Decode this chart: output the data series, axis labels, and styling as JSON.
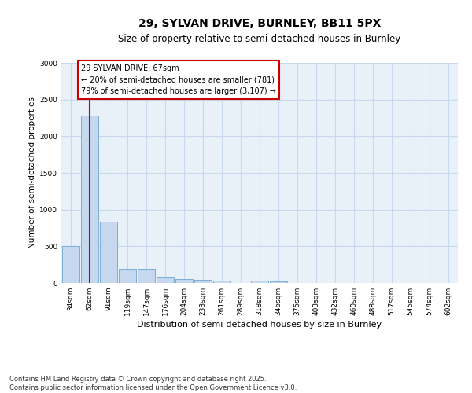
{
  "title_line1": "29, SYLVAN DRIVE, BURNLEY, BB11 5PX",
  "title_line2": "Size of property relative to semi-detached houses in Burnley",
  "xlabel": "Distribution of semi-detached houses by size in Burnley",
  "ylabel": "Number of semi-detached properties",
  "categories": [
    "34sqm",
    "62sqm",
    "91sqm",
    "119sqm",
    "147sqm",
    "176sqm",
    "204sqm",
    "233sqm",
    "261sqm",
    "289sqm",
    "318sqm",
    "346sqm",
    "375sqm",
    "403sqm",
    "432sqm",
    "460sqm",
    "488sqm",
    "517sqm",
    "545sqm",
    "574sqm",
    "602sqm"
  ],
  "values": [
    500,
    2280,
    840,
    195,
    195,
    80,
    50,
    40,
    28,
    0,
    28,
    25,
    0,
    0,
    0,
    0,
    0,
    0,
    0,
    0,
    0
  ],
  "bar_color": "#c5d8f0",
  "bar_edge_color": "#7bafd4",
  "grid_color": "#c8d8ee",
  "annotation_text": "29 SYLVAN DRIVE: 67sqm\n← 20% of semi-detached houses are smaller (781)\n79% of semi-detached houses are larger (3,107) →",
  "vline_x": 1.0,
  "vline_color": "#cc0000",
  "box_edge_color": "#cc0000",
  "ylim": [
    0,
    3000
  ],
  "yticks": [
    0,
    500,
    1000,
    1500,
    2000,
    2500,
    3000
  ],
  "footnote": "Contains HM Land Registry data © Crown copyright and database right 2025.\nContains public sector information licensed under the Open Government Licence v3.0.",
  "bg_color": "#e8f0f8",
  "title1_fontsize": 10,
  "title2_fontsize": 8.5,
  "ylabel_fontsize": 7.5,
  "xlabel_fontsize": 8,
  "tick_fontsize": 6.5,
  "annot_fontsize": 7,
  "footnote_fontsize": 6
}
